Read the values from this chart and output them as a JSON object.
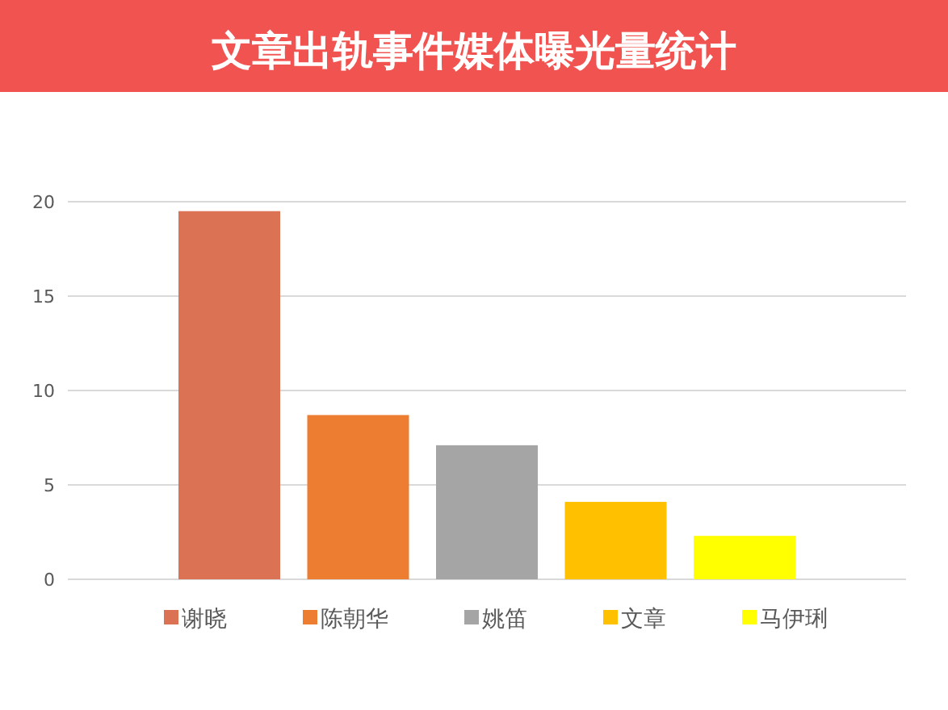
{
  "chart_data": {
    "type": "bar",
    "title": "文章出轨事件媒体曝光量统计",
    "categories": [
      null
    ],
    "series": [
      {
        "name": "谢晓",
        "color": "#db7253",
        "values": [
          19.5
        ]
      },
      {
        "name": "陈朝华",
        "color": "#ed7d31",
        "values": [
          8.7
        ]
      },
      {
        "name": "姚笛",
        "color": "#a5a5a5",
        "values": [
          7.1
        ]
      },
      {
        "name": "文章",
        "color": "#ffc000",
        "values": [
          4.1
        ]
      },
      {
        "name": "马伊琍",
        "color": "#ffff00",
        "values": [
          2.3
        ]
      }
    ],
    "ylim": [
      0,
      20
    ],
    "yticks": [
      0,
      5,
      10,
      15,
      20
    ],
    "grid": "y",
    "legend": "bottom"
  }
}
